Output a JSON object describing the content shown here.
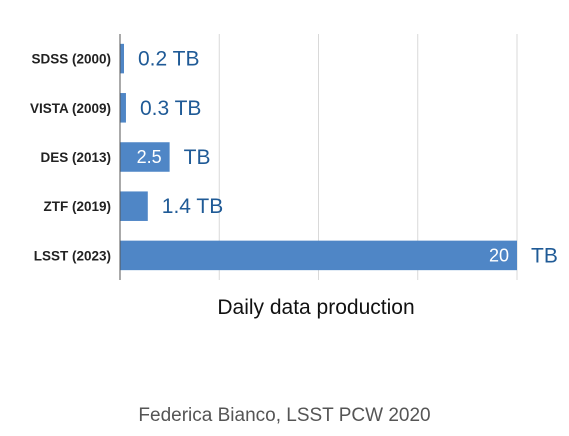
{
  "chart_data": {
    "type": "bar",
    "orientation": "horizontal",
    "categories": [
      "SDSS (2000)",
      "VISTA (2009)",
      "DES (2013)",
      "ZTF (2019)",
      "LSST (2023)"
    ],
    "values": [
      0.2,
      0.3,
      2.5,
      1.4,
      20
    ],
    "value_labels": [
      {
        "inside": "",
        "outside": "0.2 TB"
      },
      {
        "inside": "",
        "outside": "0.3 TB"
      },
      {
        "inside": "2.5",
        "outside": "TB"
      },
      {
        "inside": "",
        "outside": "1.4 TB"
      },
      {
        "inside": "20",
        "outside": "TB"
      }
    ],
    "xlabel": "Daily data production",
    "xlim": [
      0,
      20
    ],
    "grid": true,
    "colors": {
      "bar": "#4f86c6",
      "value_text": "#1f5a96",
      "grid": "#d9d9d9"
    }
  },
  "credit": "Federica Bianco, LSST PCW 2020"
}
